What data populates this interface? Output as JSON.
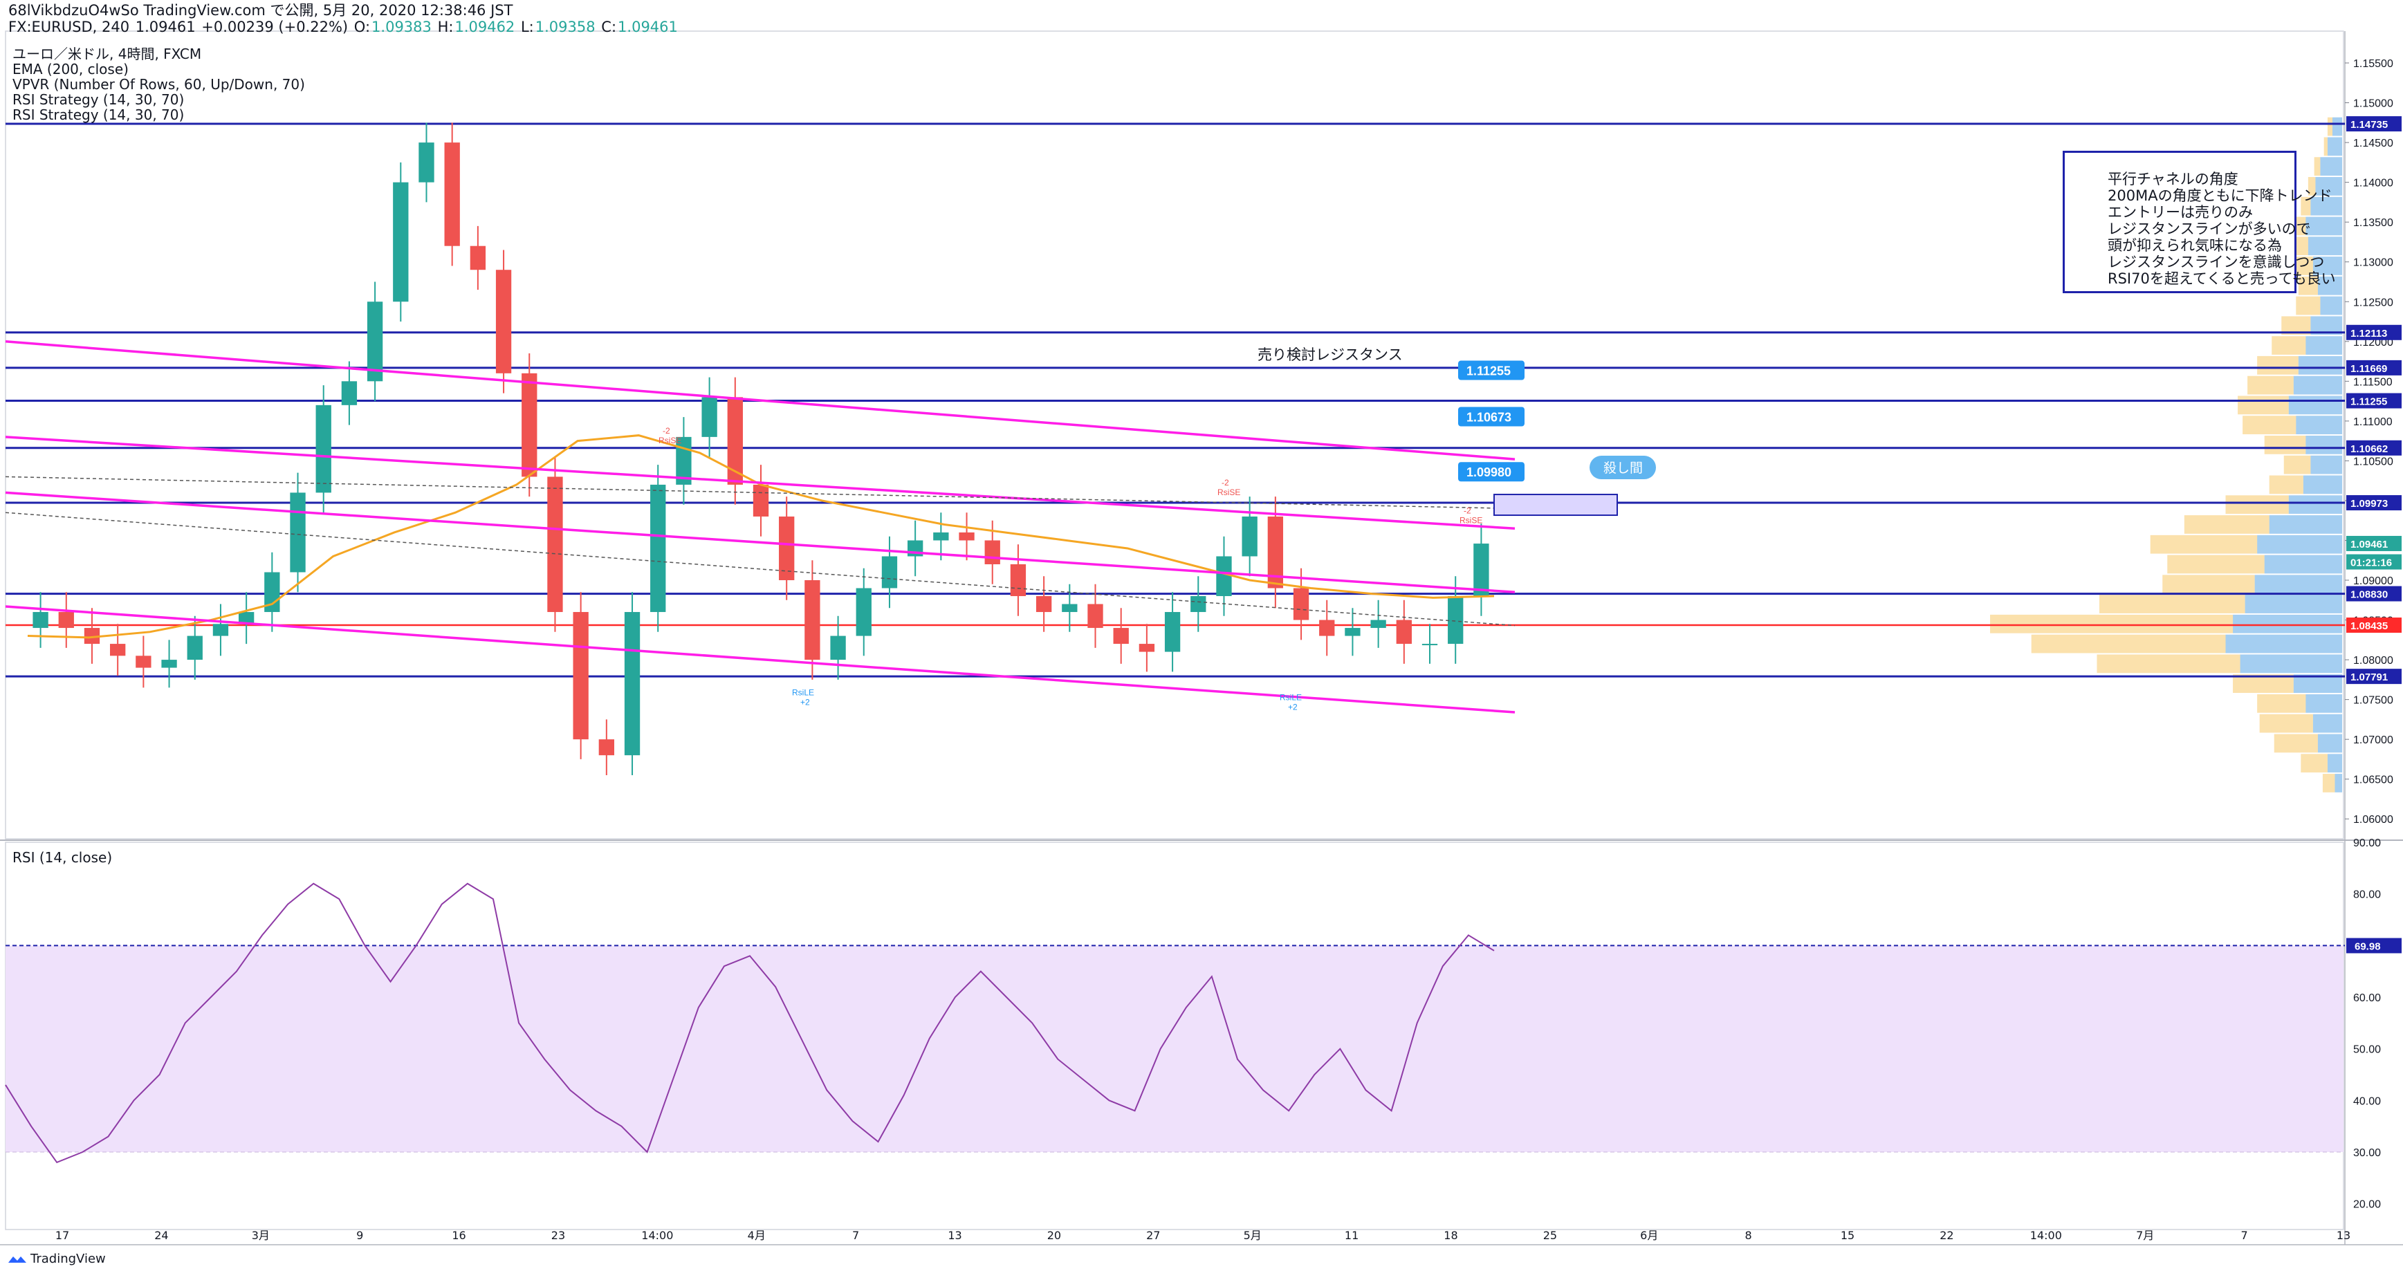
{
  "header": {
    "line1": "68lVikbdzuO4wSo TradingView.com で公開, 5月 20, 2020 12:38:46 JST",
    "symbol": "FX:EURUSD, 240",
    "last": "1.09461",
    "change": "+0.00239 (+0.22%)",
    "o_label": "O:",
    "o": "1.09383",
    "h_label": "H:",
    "h": "1.09462",
    "l_label": "L:",
    "l": "1.09358",
    "c_label": "C:",
    "c": "1.09461"
  },
  "legend": {
    "title": "ユーロ／米ドル, 4時間, FXCM",
    "ema": "EMA (200, close)",
    "vpvr": "VPVR (Number Of Rows, 60, Up/Down, 70)",
    "rsi_strategy_1": "RSI Strategy (14, 30, 70)",
    "rsi_strategy_2": "RSI Strategy (14, 30, 70)",
    "rsi_pane": "RSI (14, close)"
  },
  "annotations": {
    "resistance_label": "売り検討レジスタンス",
    "callout_1": "1.11255",
    "callout_2": "1.10673",
    "callout_3": "1.09980",
    "callout_bubble": "殺し間",
    "note_lines": [
      "平行チャネルの角度",
      "200MAの角度ともに下降トレンド",
      "エントリーは売りのみ",
      "レジスタンスラインが多いので",
      "頭が抑えられ気味になる為",
      "レジスタンスラインを意識しつつ",
      "RSI70を超えてくると売っても良い"
    ],
    "signals": {
      "short": "RsiSE",
      "long": "RsiLE",
      "short_count": "-2",
      "long_count": "+2"
    }
  },
  "footer": {
    "brand": "TradingView"
  },
  "colors": {
    "bull": "#26a69a",
    "bear": "#ef5350",
    "ema": "#f5a623",
    "channel": "#ff1ee8",
    "level": "#1e22aa",
    "rsi": "#8e3ba6",
    "rsi_band": "#efe1fb",
    "vp_up": "#5aa5e6",
    "vp_down": "#f7c45a",
    "support_red": "#ff2a2a"
  },
  "chart_data": {
    "type": "candlestick",
    "instrument": "EURUSD",
    "timeframe": "4h",
    "x_tick_labels": [
      "17",
      "24",
      "3月",
      "9",
      "16",
      "23",
      "14:00",
      "4月",
      "7",
      "13",
      "20",
      "27",
      "5月",
      "11",
      "18",
      "25",
      "6月",
      "8",
      "15",
      "22",
      "14:00",
      "7月",
      "7",
      "13"
    ],
    "price_axis": {
      "ylim": [
        1.0575,
        1.159
      ],
      "tick_labels": [
        "1.15500",
        "1.15000",
        "1.14500",
        "1.14000",
        "1.13500",
        "1.13000",
        "1.12500",
        "1.12000",
        "1.11500",
        "1.11000",
        "1.10500",
        "1.10000",
        "1.09500",
        "1.09000",
        "1.08500",
        "1.08000",
        "1.07500",
        "1.07000",
        "1.06500",
        "1.06000"
      ],
      "tick_values": [
        1.155,
        1.15,
        1.145,
        1.14,
        1.135,
        1.13,
        1.125,
        1.12,
        1.115,
        1.11,
        1.105,
        1.1,
        1.095,
        1.09,
        1.085,
        1.08,
        1.075,
        1.07,
        1.065,
        1.06
      ],
      "price_labels": [
        {
          "text": "1.14735",
          "value": 1.14735,
          "color": "#1e22aa"
        },
        {
          "text": "1.12113",
          "value": 1.12113,
          "color": "#1e22aa"
        },
        {
          "text": "1.11669",
          "value": 1.11669,
          "color": "#1e22aa"
        },
        {
          "text": "1.11255",
          "value": 1.11255,
          "color": "#1e22aa"
        },
        {
          "text": "1.10662",
          "value": 1.10662,
          "color": "#1e22aa"
        },
        {
          "text": "1.09973",
          "value": 1.09973,
          "color": "#1e22aa"
        },
        {
          "text": "1.09461",
          "value": 1.09461,
          "color": "#26a69a"
        },
        {
          "text": "01:21:16",
          "value": 1.0923,
          "color": "#26a69a"
        },
        {
          "text": "1.08830",
          "value": 1.0883,
          "color": "#1e22aa"
        },
        {
          "text": "1.08435",
          "value": 1.08435,
          "color": "#ff2a2a"
        },
        {
          "text": "1.07791",
          "value": 1.07791,
          "color": "#1e22aa"
        }
      ]
    },
    "horizontal_levels": [
      1.14735,
      1.12113,
      1.11669,
      1.11255,
      1.10662,
      1.09973,
      1.0883,
      1.07791
    ],
    "support_level": 1.08435,
    "channel_lines": [
      {
        "from": 1.12,
        "to": 1.1052
      },
      {
        "from": 1.108,
        "to": 1.0965
      },
      {
        "from": 1.101,
        "to": 1.0885
      },
      {
        "from": 1.0867,
        "to": 1.0734
      }
    ],
    "ema_200": [
      1.083,
      1.0828,
      1.0835,
      1.085,
      1.087,
      1.093,
      1.096,
      1.0985,
      1.102,
      1.1075,
      1.1082,
      1.106,
      1.102,
      1.1,
      1.0985,
      1.097,
      1.096,
      1.095,
      1.094,
      1.092,
      1.09,
      1.089,
      1.0883,
      1.0878,
      1.088
    ],
    "close": [
      1.086,
      1.084,
      1.082,
      1.0805,
      1.079,
      1.08,
      1.083,
      1.0845,
      1.086,
      1.091,
      1.101,
      1.112,
      1.115,
      1.125,
      1.14,
      1.145,
      1.132,
      1.129,
      1.116,
      1.103,
      1.086,
      1.07,
      1.068,
      1.086,
      1.102,
      1.108,
      1.113,
      1.102,
      1.098,
      1.09,
      1.08,
      1.083,
      1.089,
      1.093,
      1.095,
      1.096,
      1.095,
      1.092,
      1.088,
      1.086,
      1.087,
      1.084,
      1.082,
      1.081,
      1.086,
      1.088,
      1.093,
      1.098,
      1.089,
      1.085,
      1.083,
      1.084,
      1.085,
      1.082,
      1.082,
      1.088,
      1.0946
    ],
    "rsi": {
      "ylim": [
        15,
        90
      ],
      "tick_labels": [
        "90.00",
        "80.00",
        "70.00",
        "60.00",
        "50.00",
        "40.00",
        "30.00",
        "20.00"
      ],
      "tick_values": [
        90,
        80,
        70,
        60,
        50,
        40,
        30,
        20
      ],
      "band": [
        30,
        70
      ],
      "level_label": "69.98",
      "values": [
        43,
        35,
        28,
        30,
        33,
        40,
        45,
        55,
        60,
        65,
        72,
        78,
        82,
        79,
        70,
        63,
        70,
        78,
        82,
        79,
        55,
        48,
        42,
        38,
        35,
        30,
        44,
        58,
        66,
        68,
        62,
        52,
        42,
        36,
        32,
        41,
        52,
        60,
        65,
        60,
        55,
        48,
        44,
        40,
        38,
        50,
        58,
        64,
        48,
        42,
        38,
        45,
        50,
        42,
        38,
        55,
        66,
        72,
        69
      ]
    },
    "volume_profile_rows": [
      {
        "price": 1.147,
        "up": 8,
        "down": 4
      },
      {
        "price": 1.1445,
        "up": 12,
        "down": 3
      },
      {
        "price": 1.142,
        "up": 18,
        "down": 5
      },
      {
        "price": 1.1395,
        "up": 22,
        "down": 6
      },
      {
        "price": 1.137,
        "up": 26,
        "down": 8
      },
      {
        "price": 1.1345,
        "up": 30,
        "down": 10
      },
      {
        "price": 1.132,
        "up": 28,
        "down": 12
      },
      {
        "price": 1.1295,
        "up": 24,
        "down": 14
      },
      {
        "price": 1.127,
        "up": 20,
        "down": 16
      },
      {
        "price": 1.1245,
        "up": 18,
        "down": 20
      },
      {
        "price": 1.122,
        "up": 26,
        "down": 24
      },
      {
        "price": 1.1195,
        "up": 30,
        "down": 28
      },
      {
        "price": 1.117,
        "up": 36,
        "down": 34
      },
      {
        "price": 1.1145,
        "up": 40,
        "down": 38
      },
      {
        "price": 1.112,
        "up": 44,
        "down": 42
      },
      {
        "price": 1.1095,
        "up": 38,
        "down": 44
      },
      {
        "price": 1.107,
        "up": 30,
        "down": 34
      },
      {
        "price": 1.1045,
        "up": 26,
        "down": 22
      },
      {
        "price": 1.102,
        "up": 32,
        "down": 28
      },
      {
        "price": 1.0995,
        "up": 44,
        "down": 52
      },
      {
        "price": 1.097,
        "up": 60,
        "down": 70
      },
      {
        "price": 1.0945,
        "up": 70,
        "down": 88
      },
      {
        "price": 1.092,
        "up": 64,
        "down": 80
      },
      {
        "price": 1.0895,
        "up": 72,
        "down": 76
      },
      {
        "price": 1.087,
        "up": 80,
        "down": 120
      },
      {
        "price": 1.0845,
        "up": 90,
        "down": 200
      },
      {
        "price": 1.082,
        "up": 96,
        "down": 160
      },
      {
        "price": 1.0795,
        "up": 84,
        "down": 118
      },
      {
        "price": 1.077,
        "up": 40,
        "down": 50
      },
      {
        "price": 1.0745,
        "up": 30,
        "down": 40
      },
      {
        "price": 1.072,
        "up": 24,
        "down": 44
      },
      {
        "price": 1.0695,
        "up": 20,
        "down": 36
      },
      {
        "price": 1.067,
        "up": 12,
        "down": 22
      },
      {
        "price": 1.0645,
        "up": 6,
        "down": 10
      }
    ]
  }
}
